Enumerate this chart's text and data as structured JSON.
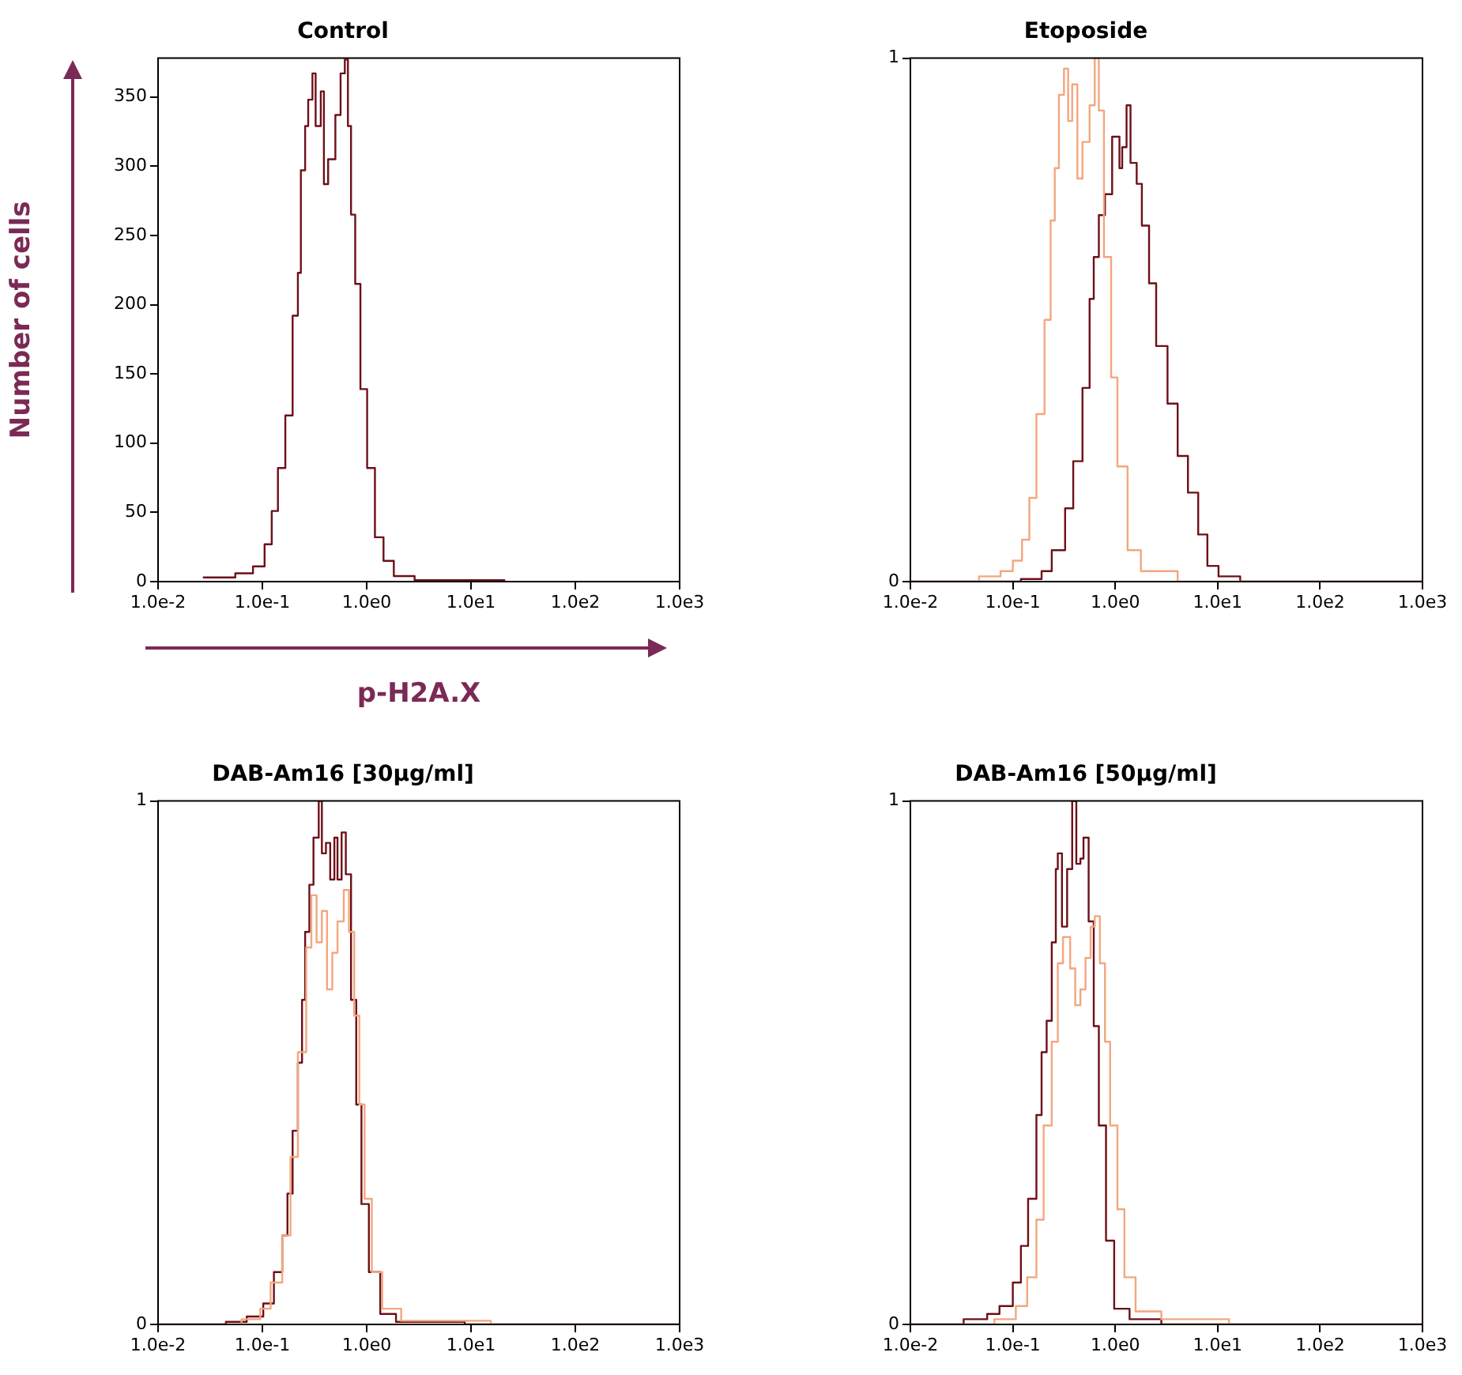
{
  "chart_data": [
    {
      "type": "step",
      "title": "Control",
      "xlabel": "p-H2A.X",
      "ylabel": "Number of cells",
      "log": "x",
      "xlim": [
        0.01,
        1000
      ],
      "xticks": [
        {
          "value": 0.01,
          "label": "1.0e-2"
        },
        {
          "value": 0.1,
          "label": "1.0e-1"
        },
        {
          "value": 1,
          "label": "1.0e0"
        },
        {
          "value": 10,
          "label": "1.0e1"
        },
        {
          "value": 100,
          "label": "1.0e2"
        },
        {
          "value": 1000,
          "label": "1.0e3"
        }
      ],
      "ylim": [
        0,
        378
      ],
      "yticks": [
        0,
        50,
        100,
        150,
        200,
        250,
        300,
        350
      ],
      "series": [
        {
          "color": "#6e0f17",
          "x": [
            0.0269,
            0.055,
            0.0813,
            0.105,
            0.123,
            0.141,
            0.166,
            0.195,
            0.219,
            0.234,
            0.257,
            0.275,
            0.302,
            0.324,
            0.363,
            0.389,
            0.427,
            0.501,
            0.562,
            0.617,
            0.661,
            0.708,
            0.776,
            0.871,
            1.01,
            1.2,
            1.45,
            1.82,
            2.88,
            9.33,
            20.9
          ],
          "values": [
            3,
            6,
            11,
            27,
            51,
            82,
            120,
            192,
            223,
            297,
            329,
            348,
            367,
            329,
            354,
            287,
            305,
            337,
            367,
            377,
            329,
            265,
            215,
            139,
            82,
            32,
            15,
            4,
            1,
            1,
            0
          ]
        }
      ]
    },
    {
      "type": "step",
      "title": "Etoposide",
      "log": "x",
      "xlim": [
        0.01,
        1000
      ],
      "xticks": [
        {
          "value": 0.01,
          "label": "1.0e-2"
        },
        {
          "value": 0.1,
          "label": "1.0e-1"
        },
        {
          "value": 1,
          "label": "1.0e0"
        },
        {
          "value": 10,
          "label": "1.0e1"
        },
        {
          "value": 100,
          "label": "1.0e2"
        },
        {
          "value": 1000,
          "label": "1.0e3"
        }
      ],
      "ylim": [
        0,
        1
      ],
      "yticks": [
        0,
        1
      ],
      "series": [
        {
          "color": "#f2a77e",
          "x": [
            0.01,
            0.0468,
            0.0759,
            0.1,
            0.123,
            0.145,
            0.17,
            0.204,
            0.234,
            0.257,
            0.282,
            0.316,
            0.347,
            0.38,
            0.427,
            0.479,
            0.562,
            0.631,
            0.692,
            0.776,
            0.912,
            1.05,
            1.32,
            1.78,
            4.07,
            1000
          ],
          "values": [
            0,
            0.01,
            0.02,
            0.04,
            0.08,
            0.16,
            0.32,
            0.5,
            0.69,
            0.79,
            0.93,
            0.98,
            0.88,
            0.95,
            0.77,
            0.84,
            0.91,
            1,
            0.9,
            0.62,
            0.39,
            0.22,
            0.06,
            0.02,
            0,
            0
          ]
        },
        {
          "color": "#6e0f17",
          "x": [
            0.01,
            0.12,
            0.191,
            0.24,
            0.324,
            0.389,
            0.479,
            0.562,
            0.617,
            0.692,
            0.794,
            0.933,
            1.1,
            1.17,
            1.29,
            1.41,
            1.62,
            1.82,
            2.14,
            2.51,
            3.24,
            4.07,
            5.13,
            6.46,
            7.94,
            10.2,
            16.6,
            1000
          ],
          "values": [
            0,
            0.005,
            0.02,
            0.06,
            0.14,
            0.23,
            0.37,
            0.54,
            0.62,
            0.7,
            0.74,
            0.85,
            0.79,
            0.83,
            0.91,
            0.8,
            0.76,
            0.68,
            0.57,
            0.45,
            0.34,
            0.24,
            0.17,
            0.09,
            0.03,
            0.01,
            0,
            0
          ]
        }
      ]
    },
    {
      "type": "step",
      "title": "DAB-Am16 [30μg/ml]",
      "log": "x",
      "xlim": [
        0.01,
        1000
      ],
      "xticks": [
        {
          "value": 0.01,
          "label": "1.0e-2"
        },
        {
          "value": 0.1,
          "label": "1.0e-1"
        },
        {
          "value": 1,
          "label": "1.0e0"
        },
        {
          "value": 10,
          "label": "1.0e1"
        },
        {
          "value": 100,
          "label": "1.0e2"
        },
        {
          "value": 1000,
          "label": "1.0e3"
        }
      ],
      "ylim": [
        0,
        1
      ],
      "yticks": [
        0,
        1
      ],
      "series": [
        {
          "color": "#f2a77e",
          "x": [
            0.01,
            0.0631,
            0.0955,
            0.12,
            0.155,
            0.186,
            0.219,
            0.263,
            0.295,
            0.331,
            0.372,
            0.417,
            0.468,
            0.525,
            0.603,
            0.676,
            0.759,
            0.851,
            0.955,
            1.12,
            1.41,
            2.14,
            15.5,
            1000
          ],
          "values": [
            0,
            0.01,
            0.03,
            0.08,
            0.17,
            0.32,
            0.52,
            0.72,
            0.82,
            0.73,
            0.79,
            0.64,
            0.71,
            0.77,
            0.83,
            0.75,
            0.59,
            0.42,
            0.24,
            0.1,
            0.03,
            0.007,
            0,
            0
          ]
        },
        {
          "color": "#6e0f17",
          "x": [
            0.01,
            0.0447,
            0.0708,
            0.102,
            0.129,
            0.155,
            0.174,
            0.195,
            0.219,
            0.24,
            0.257,
            0.282,
            0.309,
            0.347,
            0.372,
            0.407,
            0.447,
            0.49,
            0.525,
            0.575,
            0.631,
            0.708,
            0.794,
            0.891,
            1.05,
            1.35,
            1.91,
            8.71,
            1000
          ],
          "values": [
            0,
            0.005,
            0.015,
            0.04,
            0.1,
            0.17,
            0.25,
            0.37,
            0.5,
            0.62,
            0.75,
            0.84,
            0.93,
            1,
            0.9,
            0.92,
            0.85,
            0.93,
            0.85,
            0.94,
            0.86,
            0.62,
            0.42,
            0.23,
            0.1,
            0.02,
            0.005,
            0,
            0
          ]
        }
      ]
    },
    {
      "type": "step",
      "title": "DAB-Am16 [50μg/ml]",
      "log": "x",
      "xlim": [
        0.01,
        1000
      ],
      "xticks": [
        {
          "value": 0.01,
          "label": "1.0e-2"
        },
        {
          "value": 0.1,
          "label": "1.0e-1"
        },
        {
          "value": 1,
          "label": "1.0e0"
        },
        {
          "value": 10,
          "label": "1.0e1"
        },
        {
          "value": 100,
          "label": "1.0e2"
        },
        {
          "value": 1000,
          "label": "1.0e3"
        }
      ],
      "ylim": [
        0,
        1
      ],
      "yticks": [
        0,
        1
      ],
      "series": [
        {
          "color": "#f2a77e",
          "x": [
            0.01,
            0.0661,
            0.107,
            0.138,
            0.17,
            0.2,
            0.24,
            0.275,
            0.309,
            0.363,
            0.407,
            0.457,
            0.513,
            0.575,
            0.631,
            0.708,
            0.794,
            0.891,
            1.05,
            1.23,
            1.58,
            2.82,
            12.9,
            1000
          ],
          "values": [
            0,
            0.01,
            0.035,
            0.09,
            0.2,
            0.38,
            0.54,
            0.69,
            0.74,
            0.68,
            0.61,
            0.64,
            0.7,
            0.76,
            0.78,
            0.69,
            0.54,
            0.38,
            0.22,
            0.09,
            0.025,
            0.01,
            0,
            0
          ]
        },
        {
          "color": "#6e0f17",
          "x": [
            0.01,
            0.0331,
            0.0562,
            0.0741,
            0.1,
            0.12,
            0.141,
            0.17,
            0.191,
            0.214,
            0.24,
            0.263,
            0.275,
            0.302,
            0.339,
            0.38,
            0.417,
            0.457,
            0.49,
            0.55,
            0.617,
            0.692,
            0.813,
            0.977,
            1.38,
            2.82,
            1000
          ],
          "values": [
            0,
            0.01,
            0.02,
            0.035,
            0.08,
            0.15,
            0.24,
            0.4,
            0.52,
            0.58,
            0.73,
            0.87,
            0.9,
            0.76,
            0.87,
            1,
            0.88,
            0.89,
            0.93,
            0.77,
            0.57,
            0.38,
            0.16,
            0.03,
            0.01,
            0,
            0
          ]
        }
      ]
    }
  ]
}
